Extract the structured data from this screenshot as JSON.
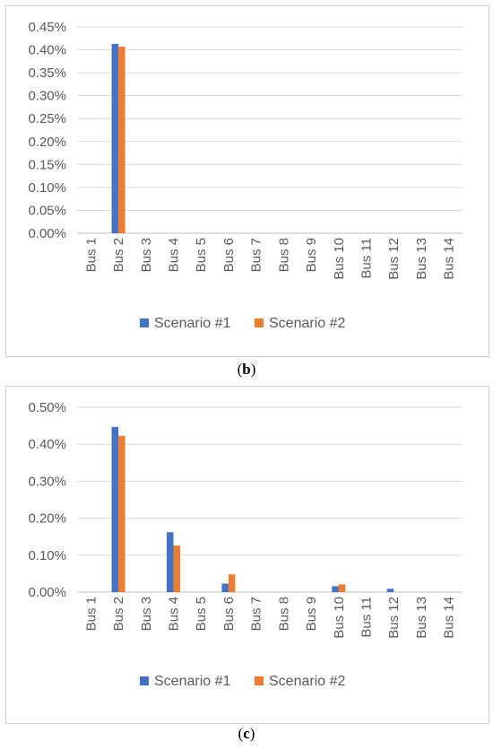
{
  "chart_data": [
    {
      "type": "bar",
      "caption_letter": "b",
      "categories": [
        "Bus 1",
        "Bus 2",
        "Bus 3",
        "Bus 4",
        "Bus 5",
        "Bus 6",
        "Bus 7",
        "Bus 8",
        "Bus 9",
        "Bus 10",
        "Bus 11",
        "Bus 12",
        "Bus 13",
        "Bus 14"
      ],
      "series": [
        {
          "name": "Scenario #1",
          "color": "#4472C4",
          "values": [
            0,
            0.413,
            0,
            0,
            0,
            0,
            0,
            0,
            0,
            0,
            0,
            0,
            0,
            0
          ]
        },
        {
          "name": "Scenario #2",
          "color": "#ED7D31",
          "values": [
            0,
            0.407,
            0,
            0,
            0,
            0,
            0,
            0,
            0,
            0,
            0,
            0,
            0,
            0
          ]
        }
      ],
      "ylim": [
        0,
        0.45
      ],
      "yticks": [
        0,
        0.05,
        0.1,
        0.15,
        0.2,
        0.25,
        0.3,
        0.35,
        0.4,
        0.45
      ],
      "ytick_labels": [
        "0.00%",
        "0.05%",
        "0.10%",
        "0.15%",
        "0.20%",
        "0.25%",
        "0.30%",
        "0.35%",
        "0.40%",
        "0.45%"
      ],
      "grid": true,
      "legend_position": "bottom",
      "title": "",
      "xlabel": "",
      "ylabel": ""
    },
    {
      "type": "bar",
      "caption_letter": "c",
      "categories": [
        "Bus 1",
        "Bus 2",
        "Bus 3",
        "Bus 4",
        "Bus 5",
        "Bus 6",
        "Bus 7",
        "Bus 8",
        "Bus 9",
        "Bus 10",
        "Bus 11",
        "Bus 12",
        "Bus 13",
        "Bus 14"
      ],
      "series": [
        {
          "name": "Scenario #1",
          "color": "#4472C4",
          "values": [
            0,
            0.447,
            0,
            0.162,
            0,
            0.023,
            0,
            0,
            0,
            0.016,
            0,
            0.009,
            0,
            0
          ]
        },
        {
          "name": "Scenario #2",
          "color": "#ED7D31",
          "values": [
            0,
            0.423,
            0,
            0.126,
            0,
            0.048,
            0,
            0,
            0,
            0.021,
            0,
            0,
            0,
            0
          ]
        }
      ],
      "ylim": [
        0,
        0.5
      ],
      "yticks": [
        0,
        0.1,
        0.2,
        0.3,
        0.4,
        0.5
      ],
      "ytick_labels": [
        "0.00%",
        "0.10%",
        "0.20%",
        "0.30%",
        "0.40%",
        "0.50%"
      ],
      "grid": true,
      "legend_position": "bottom",
      "title": "",
      "xlabel": "",
      "ylabel": ""
    }
  ]
}
